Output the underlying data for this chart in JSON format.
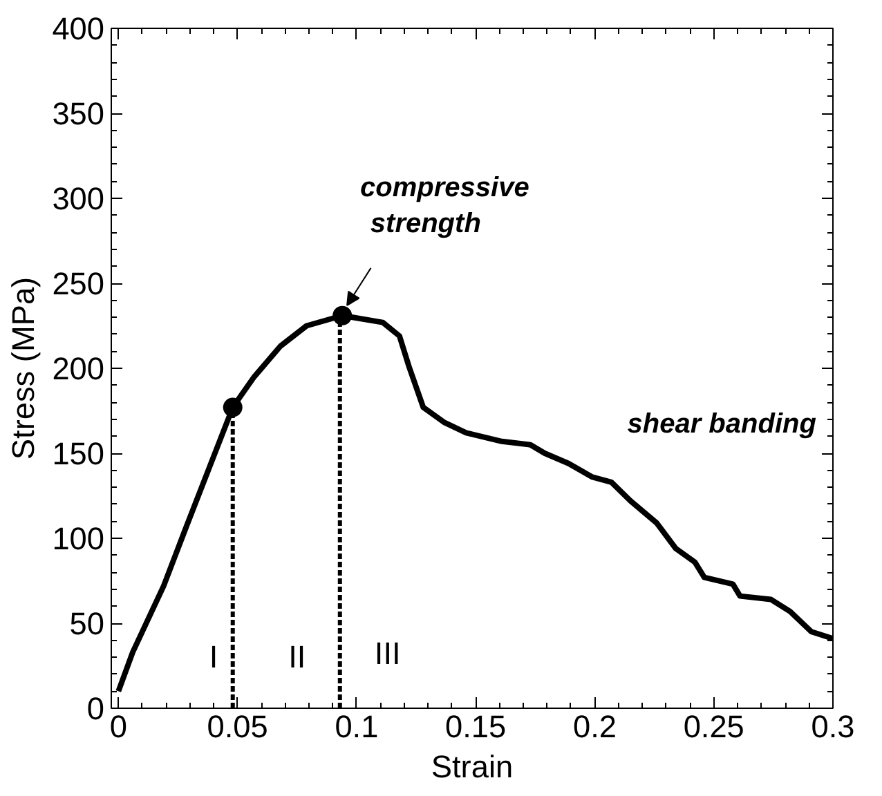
{
  "chart_data": {
    "type": "line",
    "xlabel": "Strain",
    "ylabel": "Stress (MPa)",
    "xlim": [
      -0.003,
      0.3
    ],
    "ylim": [
      0,
      400
    ],
    "xticks": [
      0,
      0.05,
      0.1,
      0.15,
      0.2,
      0.25,
      0.3
    ],
    "yticks": [
      0,
      50,
      100,
      150,
      200,
      250,
      300,
      350,
      400
    ],
    "grid": false,
    "series": [
      {
        "color": "#000000",
        "marker": "none",
        "line_style": "solid",
        "x": [
          0,
          0.006,
          0.019,
          0.028,
          0.038,
          0.048,
          0.057,
          0.068,
          0.079,
          0.094,
          0.111,
          0.118,
          0.122,
          0.128,
          0.137,
          0.146,
          0.161,
          0.173,
          0.179,
          0.189,
          0.199,
          0.207,
          0.215,
          0.226,
          0.234,
          0.242,
          0.246,
          0.258,
          0.261,
          0.274,
          0.282,
          0.291,
          0.3
        ],
        "values": [
          10,
          33,
          72,
          105,
          141,
          177,
          195,
          213,
          225,
          231,
          227,
          219,
          201,
          177,
          168,
          162,
          157,
          155,
          150,
          144,
          136,
          133,
          122,
          109,
          94,
          86,
          77,
          73,
          66,
          64,
          57,
          45,
          41
        ]
      },
      {
        "type": "line",
        "color": "#000000",
        "line_style": "dashed",
        "marker": "none",
        "x": [
          0.048,
          0.048
        ],
        "values": [
          0,
          177
        ]
      },
      {
        "type": "line",
        "color": "#000000",
        "line_style": "dashed",
        "marker": "none",
        "x": [
          0.093,
          0.093
        ],
        "values": [
          0,
          231
        ]
      },
      {
        "type": "scatter",
        "color": "#000000",
        "marker": "circle",
        "x": [
          0.048,
          0.094
        ],
        "values": [
          177,
          231
        ]
      }
    ],
    "annotations": [
      {
        "text": "compressive strength",
        "x": 0.094,
        "y": 231
      },
      "shear banding",
      "I",
      "II",
      "III"
    ]
  }
}
